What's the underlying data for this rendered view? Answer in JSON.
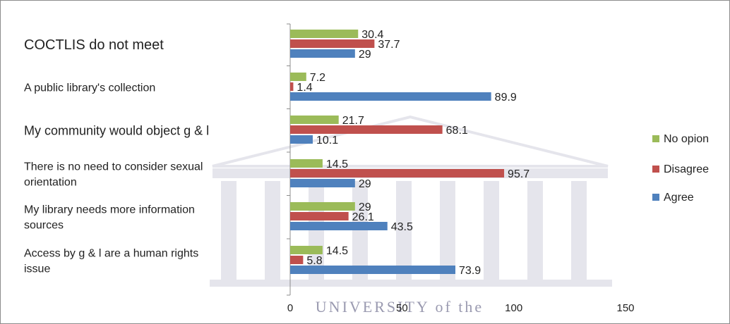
{
  "chart_data": {
    "type": "bar",
    "orientation": "horizontal",
    "categories": [
      [
        "COCTLIS do not meet"
      ],
      [
        "A public library's collection"
      ],
      [
        "My community would object g & l"
      ],
      [
        "There is no need to consider sexual",
        "orientation"
      ],
      [
        "My library needs more information",
        "sources"
      ],
      [
        "Access by g & l are a human rights",
        "issue"
      ]
    ],
    "series": [
      {
        "name": "No opion",
        "color": "#9bbb59",
        "values": [
          30.4,
          7.2,
          21.7,
          14.5,
          29,
          14.5
        ]
      },
      {
        "name": "Disagree",
        "color": "#c0504d",
        "values": [
          37.7,
          1.4,
          68.1,
          95.7,
          26.1,
          5.8
        ]
      },
      {
        "name": "Agree",
        "color": "#4f81bd",
        "values": [
          29,
          89.9,
          10.1,
          29,
          43.5,
          73.9
        ]
      }
    ],
    "xlim": [
      0,
      150
    ],
    "xticks": [
      "0",
      "50",
      "100",
      "150"
    ],
    "grid": false,
    "legend": "right",
    "watermark": "UNIVERSITY of the"
  }
}
